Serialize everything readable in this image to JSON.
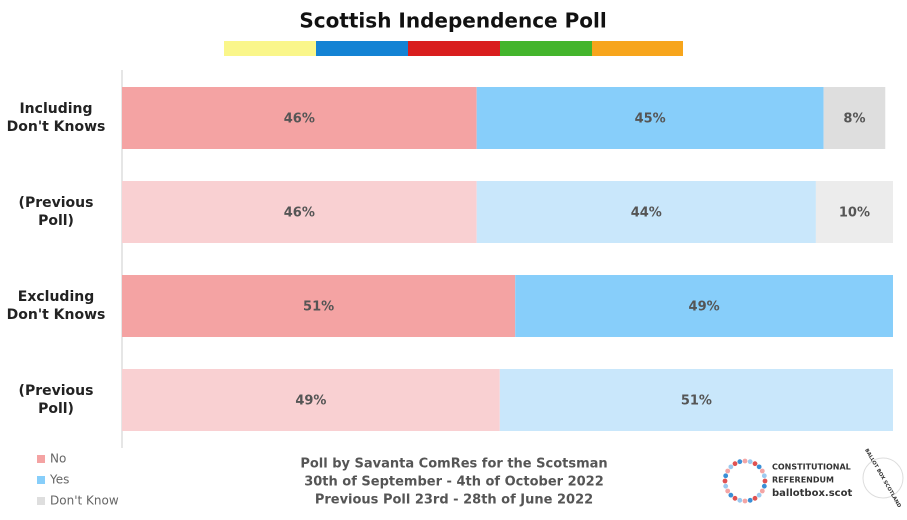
{
  "chart_data": {
    "type": "stacked_bar_horizontal",
    "title": "Scottish Independence Poll",
    "categories": [
      "Including\nDon't Knows",
      "(Previous Poll)",
      "Excluding\nDon't Knows",
      "(Previous Poll)"
    ],
    "series": [
      {
        "name": "No",
        "color": "#f4a3a3",
        "colors": [
          "#f4a3a3",
          "#f9d0d2",
          "#f4a3a3",
          "#f9d0d2"
        ],
        "values": [
          46,
          46,
          51,
          49
        ],
        "value_labels": [
          "46%",
          "46%",
          "51%",
          "49%"
        ]
      },
      {
        "name": "Yes",
        "color": "#87cefa",
        "colors": [
          "#87cefa",
          "#c9e7fb",
          "#87cefa",
          "#c9e7fb"
        ],
        "values": [
          45,
          44,
          49,
          51
        ],
        "value_labels": [
          "45%",
          "44%",
          "49%",
          "51%"
        ]
      },
      {
        "name": "Don't Know",
        "color": "#dedede",
        "colors": [
          "#dedede",
          "#ececec",
          "#dedede",
          "#ececec"
        ],
        "values": [
          8,
          10,
          null,
          null
        ],
        "value_labels": [
          "8%",
          "10%",
          null,
          null
        ]
      }
    ],
    "xlim": [
      0,
      100
    ],
    "legend": "bottom-left",
    "notes": [
      "Poll by Savanta ComRes for the Scotsman",
      "30th of September - 4th of October 2022",
      "Previous Poll 23rd - 28th of June 2022"
    ],
    "logo": [
      "CONSTITUTIONAL",
      "REFERENDUM",
      "ballotbox.scot"
    ],
    "badge": "BALLOT BOX SCOTLAND"
  }
}
